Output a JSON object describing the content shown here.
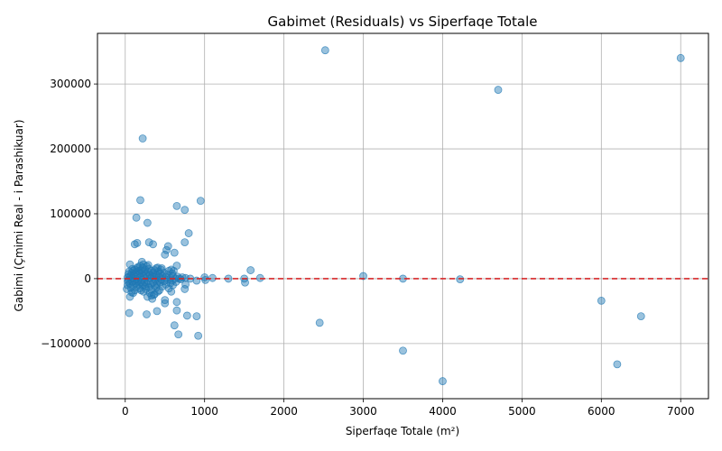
{
  "chart_data": {
    "type": "scatter",
    "title": "Gabimet (Residuals) vs Siperfaqe Totale",
    "xlabel": "Siperfaqe Totale (m²)",
    "ylabel": "Gabimi (Çmimi Real - i Parashikuar)",
    "xlim": [
      -350,
      7350
    ],
    "ylim": [
      -185000,
      378000
    ],
    "xticks": [
      0,
      1000,
      2000,
      3000,
      4000,
      5000,
      6000,
      7000
    ],
    "yticks": [
      -100000,
      0,
      100000,
      200000,
      300000
    ],
    "xtick_labels": [
      "0",
      "1000",
      "2000",
      "3000",
      "4000",
      "5000",
      "6000",
      "7000"
    ],
    "ytick_labels": [
      "−100000",
      "0",
      "100000",
      "200000",
      "300000"
    ],
    "grid": true,
    "reference_line": {
      "y": 0,
      "color": "#d62728",
      "style": "dashed"
    },
    "point_color": "#1f77b4",
    "point_alpha": 0.45,
    "points": [
      [
        2520,
        352000
      ],
      [
        7000,
        340000
      ],
      [
        4700,
        291000
      ],
      [
        220,
        216000
      ],
      [
        190,
        121000
      ],
      [
        950,
        120000
      ],
      [
        650,
        112000
      ],
      [
        750,
        106000
      ],
      [
        140,
        94000
      ],
      [
        280,
        86000
      ],
      [
        800,
        70000
      ],
      [
        300,
        56000
      ],
      [
        750,
        56000
      ],
      [
        150,
        55000
      ],
      [
        120,
        53000
      ],
      [
        350,
        53000
      ],
      [
        540,
        50000
      ],
      [
        520,
        44000
      ],
      [
        620,
        40000
      ],
      [
        500,
        37000
      ],
      [
        60,
        22000
      ],
      [
        210,
        26000
      ],
      [
        230,
        22000
      ],
      [
        290,
        21000
      ],
      [
        650,
        20000
      ],
      [
        1580,
        13000
      ],
      [
        90,
        15000
      ],
      [
        160,
        18000
      ],
      [
        410,
        17000
      ],
      [
        460,
        16000
      ],
      [
        580,
        14000
      ],
      [
        610,
        12000
      ],
      [
        3000,
        4000
      ],
      [
        1000,
        2000
      ],
      [
        1100,
        1000
      ],
      [
        1300,
        0
      ],
      [
        1700,
        1000
      ],
      [
        3500,
        0
      ],
      [
        4220,
        -1000
      ],
      [
        1500,
        0
      ],
      [
        1510,
        -6000
      ],
      [
        900,
        -3000
      ],
      [
        1010,
        -2000
      ],
      [
        680,
        0
      ],
      [
        60,
        -28000
      ],
      [
        100,
        -22000
      ],
      [
        80,
        -21000
      ],
      [
        200,
        -18000
      ],
      [
        250,
        -12000
      ],
      [
        330,
        -26000
      ],
      [
        370,
        -24000
      ],
      [
        410,
        -20000
      ],
      [
        500,
        -33000
      ],
      [
        580,
        -20000
      ],
      [
        750,
        -16000
      ],
      [
        650,
        -36000
      ],
      [
        500,
        -38000
      ],
      [
        400,
        -50000
      ],
      [
        650,
        -49000
      ],
      [
        780,
        -57000
      ],
      [
        900,
        -58000
      ],
      [
        270,
        -55000
      ],
      [
        50,
        -53000
      ],
      [
        620,
        -72000
      ],
      [
        670,
        -86000
      ],
      [
        920,
        -88000
      ],
      [
        2450,
        -68000
      ],
      [
        3500,
        -111000
      ],
      [
        4000,
        -158000
      ],
      [
        6200,
        -132000
      ],
      [
        6500,
        -58000
      ],
      [
        6000,
        -34000
      ],
      [
        20,
        -16000
      ],
      [
        30,
        -10000
      ],
      [
        30,
        -4000
      ],
      [
        30,
        2000
      ],
      [
        40,
        7000
      ],
      [
        40,
        -2000
      ],
      [
        50,
        3000
      ],
      [
        50,
        11000
      ],
      [
        60,
        -8000
      ],
      [
        70,
        5000
      ],
      [
        70,
        -14000
      ],
      [
        80,
        9000
      ],
      [
        90,
        -5000
      ],
      [
        90,
        1000
      ],
      [
        100,
        12000
      ],
      [
        100,
        -10000
      ],
      [
        110,
        6000
      ],
      [
        110,
        -3000
      ],
      [
        120,
        14000
      ],
      [
        120,
        -18000
      ],
      [
        130,
        3000
      ],
      [
        130,
        -7000
      ],
      [
        140,
        10000
      ],
      [
        140,
        -1000
      ],
      [
        150,
        16000
      ],
      [
        150,
        -12000
      ],
      [
        160,
        5000
      ],
      [
        160,
        -4000
      ],
      [
        170,
        12000
      ],
      [
        170,
        -9000
      ],
      [
        180,
        8000
      ],
      [
        180,
        -15000
      ],
      [
        190,
        2000
      ],
      [
        190,
        20000
      ],
      [
        200,
        13000
      ],
      [
        200,
        -6000
      ],
      [
        210,
        9000
      ],
      [
        210,
        -2000
      ],
      [
        220,
        17000
      ],
      [
        220,
        -10000
      ],
      [
        230,
        4000
      ],
      [
        230,
        -20000
      ],
      [
        240,
        11000
      ],
      [
        240,
        -5000
      ],
      [
        250,
        14000
      ],
      [
        250,
        0
      ],
      [
        260,
        7000
      ],
      [
        260,
        -16000
      ],
      [
        270,
        19000
      ],
      [
        270,
        -8000
      ],
      [
        280,
        3000
      ],
      [
        280,
        -28000
      ],
      [
        290,
        10000
      ],
      [
        290,
        -4000
      ],
      [
        300,
        15000
      ],
      [
        300,
        -13000
      ],
      [
        310,
        6000
      ],
      [
        310,
        -22000
      ],
      [
        320,
        1000
      ],
      [
        320,
        -9000
      ],
      [
        330,
        12000
      ],
      [
        330,
        -17000
      ],
      [
        340,
        4000
      ],
      [
        340,
        -31000
      ],
      [
        350,
        9000
      ],
      [
        350,
        -6000
      ],
      [
        360,
        2000
      ],
      [
        360,
        -25000
      ],
      [
        370,
        13000
      ],
      [
        370,
        -11000
      ],
      [
        380,
        7000
      ],
      [
        380,
        -2000
      ],
      [
        390,
        16000
      ],
      [
        390,
        -14000
      ],
      [
        400,
        5000
      ],
      [
        400,
        -8000
      ],
      [
        420,
        11000
      ],
      [
        420,
        -3000
      ],
      [
        430,
        3000
      ],
      [
        430,
        -18000
      ],
      [
        440,
        8000
      ],
      [
        440,
        -6000
      ],
      [
        450,
        14000
      ],
      [
        450,
        -1000
      ],
      [
        470,
        4000
      ],
      [
        470,
        -12000
      ],
      [
        490,
        9000
      ],
      [
        490,
        -4000
      ],
      [
        510,
        2000
      ],
      [
        510,
        -9000
      ],
      [
        530,
        6000
      ],
      [
        530,
        -2000
      ],
      [
        550,
        12000
      ],
      [
        550,
        -15000
      ],
      [
        570,
        1000
      ],
      [
        570,
        -7000
      ],
      [
        590,
        8000
      ],
      [
        590,
        -3000
      ],
      [
        600,
        4000
      ],
      [
        600,
        -10000
      ],
      [
        630,
        0
      ],
      [
        640,
        -5000
      ],
      [
        660,
        3000
      ],
      [
        700,
        -1000
      ],
      [
        720,
        2000
      ],
      [
        760,
        -9000
      ],
      [
        760,
        1000
      ],
      [
        820,
        0
      ]
    ]
  }
}
